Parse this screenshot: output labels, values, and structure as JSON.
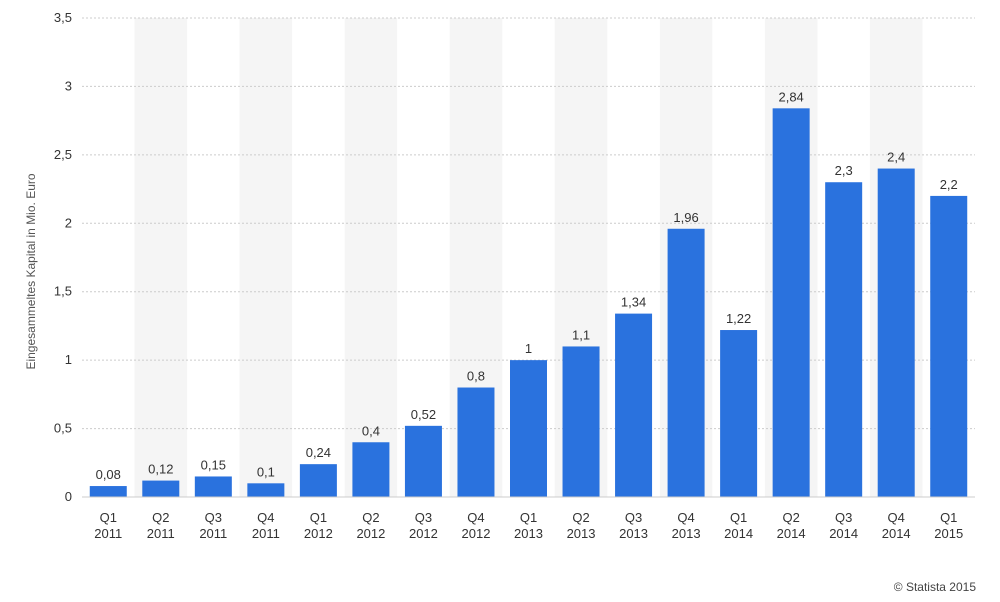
{
  "chart_data": {
    "type": "bar",
    "categories": [
      [
        "Q1",
        "2011"
      ],
      [
        "Q2",
        "2011"
      ],
      [
        "Q3",
        "2011"
      ],
      [
        "Q4",
        "2011"
      ],
      [
        "Q1",
        "2012"
      ],
      [
        "Q2",
        "2012"
      ],
      [
        "Q3",
        "2012"
      ],
      [
        "Q4",
        "2012"
      ],
      [
        "Q1",
        "2013"
      ],
      [
        "Q2",
        "2013"
      ],
      [
        "Q3",
        "2013"
      ],
      [
        "Q4",
        "2013"
      ],
      [
        "Q1",
        "2014"
      ],
      [
        "Q2",
        "2014"
      ],
      [
        "Q3",
        "2014"
      ],
      [
        "Q4",
        "2014"
      ],
      [
        "Q1",
        "2015"
      ]
    ],
    "values": [
      0.08,
      0.12,
      0.15,
      0.1,
      0.24,
      0.4,
      0.52,
      0.8,
      1,
      1.1,
      1.34,
      1.96,
      1.22,
      2.84,
      2.3,
      2.4,
      2.2
    ],
    "value_labels": [
      "0,08",
      "0,12",
      "0,15",
      "0,1",
      "0,24",
      "0,4",
      "0,52",
      "0,8",
      "1",
      "1,1",
      "1,34",
      "1,96",
      "1,22",
      "2,84",
      "2,3",
      "2,4",
      "2,2"
    ],
    "title": "",
    "xlabel": "",
    "ylabel": "Eingesammeltes Kapital in Mio. Euro",
    "ylim": [
      0,
      3.5
    ],
    "yticks": [
      0,
      0.5,
      1,
      1.5,
      2,
      2.5,
      3,
      3.5
    ],
    "ytick_labels": [
      "0",
      "0,5",
      "1",
      "1,5",
      "2",
      "2,5",
      "3",
      "3,5"
    ],
    "grid": true,
    "legend": "none",
    "colors": {
      "bar": "#2a72de",
      "band": "#f5f5f5",
      "grid": "#cccccc"
    }
  },
  "credit": "© Statista 2015"
}
